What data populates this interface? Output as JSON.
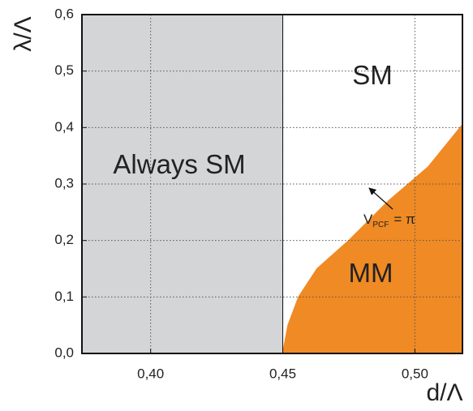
{
  "chart_data": {
    "type": "phase-diagram",
    "x_label": "d/Λ",
    "y_label": "λ/Λ",
    "xlim": [
      0.374,
      0.518
    ],
    "ylim": [
      0,
      0.6
    ],
    "xticks": [
      {
        "value": 0.4,
        "label": "0,40"
      },
      {
        "value": 0.45,
        "label": "0,45"
      },
      {
        "value": 0.5,
        "label": "0,50"
      }
    ],
    "yticks": [
      {
        "value": 0,
        "label": "0,0"
      },
      {
        "value": 0.1,
        "label": "0,1"
      },
      {
        "value": 0.2,
        "label": "0,2"
      },
      {
        "value": 0.3,
        "label": "0,3"
      },
      {
        "value": 0.4,
        "label": "0,4"
      },
      {
        "value": 0.5,
        "label": "0,5"
      },
      {
        "value": 0.6,
        "label": "0,6"
      }
    ],
    "grid": true,
    "boundary_x": 0.45,
    "boundary_color": "#d4d5d7",
    "curve": {
      "color": "#f08a24",
      "x": [
        0.45,
        0.452,
        0.456,
        0.463,
        0.475,
        0.49,
        0.505,
        0.518
      ],
      "y": [
        0,
        0.05,
        0.1,
        0.15,
        0.2,
        0.27,
        0.33,
        0.405
      ]
    },
    "annotations": {
      "left_region": "Always SM",
      "upper_region": "SM",
      "lower_region": "MM",
      "curve_label": {
        "main": "V",
        "subscript": "PCF",
        "rest": "= π"
      }
    }
  }
}
